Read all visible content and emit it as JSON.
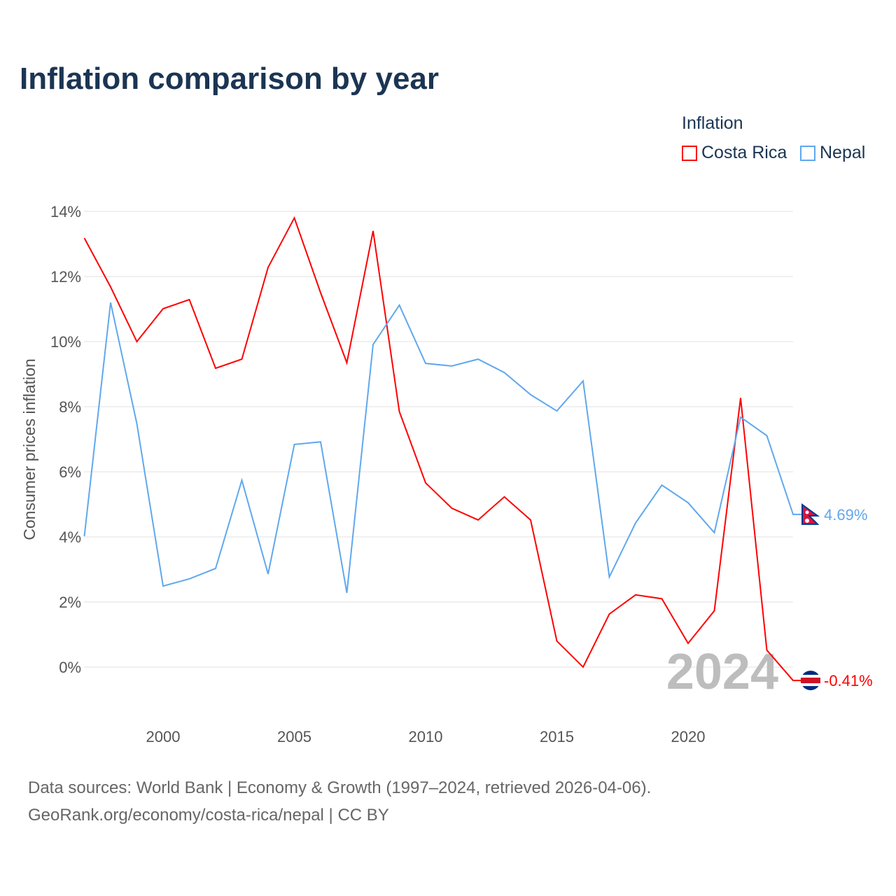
{
  "title": "Inflation comparison by year",
  "legend": {
    "title": "Inflation",
    "items": [
      "Costa Rica",
      "Nepal"
    ]
  },
  "footer": {
    "line1": "Data sources: World Bank | Economy & Growth (1997–2024, retrieved 2026-04-06).",
    "line2": "GeoRank.org/economy/costa-rica/nepal | CC BY"
  },
  "colors": {
    "Costa Rica": "#ff0000",
    "Nepal": "#5fa8ee"
  },
  "chart_data": {
    "type": "line",
    "title": "Inflation comparison by year",
    "xlabel": "",
    "ylabel": "Consumer prices inflation",
    "x": [
      1997,
      1998,
      1999,
      2000,
      2001,
      2002,
      2003,
      2004,
      2005,
      2006,
      2007,
      2008,
      2009,
      2010,
      2011,
      2012,
      2013,
      2014,
      2015,
      2016,
      2017,
      2018,
      2019,
      2020,
      2021,
      2022,
      2023,
      2024
    ],
    "xticks": [
      "2000",
      "2005",
      "2010",
      "2015",
      "2020"
    ],
    "yticks": [
      "0%",
      "2%",
      "4%",
      "6%",
      "8%",
      "10%",
      "12%",
      "14%"
    ],
    "ylim": [
      -0.8,
      14.5
    ],
    "year_label": "2024",
    "series": [
      {
        "name": "Costa Rica",
        "end_label": "-0.41%",
        "values": [
          13.18,
          11.68,
          10.0,
          11.01,
          11.29,
          9.18,
          9.46,
          12.28,
          13.8,
          11.5,
          9.35,
          13.4,
          7.85,
          5.66,
          4.88,
          4.52,
          5.23,
          4.52,
          0.8,
          0.0,
          1.63,
          2.22,
          2.1,
          0.73,
          1.73,
          8.27,
          0.52,
          -0.41
        ]
      },
      {
        "name": "Nepal",
        "end_label": "4.69%",
        "values": [
          4.02,
          11.2,
          7.48,
          2.49,
          2.71,
          3.03,
          5.74,
          2.86,
          6.84,
          6.92,
          2.28,
          9.91,
          11.12,
          9.33,
          9.25,
          9.46,
          9.05,
          8.37,
          7.87,
          8.79,
          2.77,
          4.43,
          5.59,
          5.05,
          4.13,
          7.68,
          7.11,
          4.69
        ]
      }
    ]
  }
}
